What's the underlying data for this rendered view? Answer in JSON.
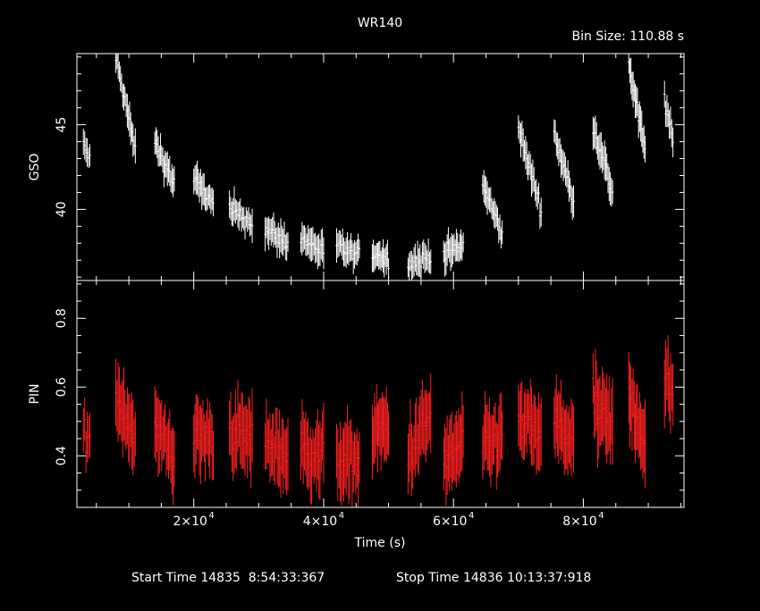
{
  "title": "WR140",
  "bin_label": "Bin Size:  110.88  s",
  "footer": {
    "start": "Start Time 14835  8:54:33:367",
    "stop": "Stop Time 14836 10:13:37:918"
  },
  "colors": {
    "background": "#000000",
    "axes": "#ffffff",
    "gso": "#ffffff",
    "pin": "#ff2020"
  },
  "chart_data": [
    {
      "type": "scatter",
      "ylabel": "GSO",
      "xlabel": "",
      "xlim": [
        2000,
        95500
      ],
      "ylim": [
        35.8,
        49.2
      ],
      "yticks": [
        {
          "v": 40,
          "label": "40"
        },
        {
          "v": 45,
          "label": "45"
        }
      ],
      "error_bars": true,
      "orbits": [
        {
          "x0": 3000,
          "x1": 4000,
          "y0": 43.8,
          "y1": 43.0,
          "err": 0.7,
          "n": 6
        },
        {
          "x0": 8000,
          "x1": 11000,
          "y0": 49.0,
          "y1": 43.5,
          "err": 0.8,
          "n": 18
        },
        {
          "x0": 14000,
          "x1": 17000,
          "y0": 44.0,
          "y1": 41.5,
          "err": 0.8,
          "n": 18
        },
        {
          "x0": 20000,
          "x1": 23000,
          "y0": 41.8,
          "y1": 40.3,
          "err": 0.8,
          "n": 18
        },
        {
          "x0": 25500,
          "x1": 29000,
          "y0": 40.0,
          "y1": 39.2,
          "err": 0.8,
          "n": 20
        },
        {
          "x0": 31000,
          "x1": 34500,
          "y0": 38.8,
          "y1": 38.0,
          "err": 0.8,
          "n": 20
        },
        {
          "x0": 36500,
          "x1": 40000,
          "y0": 38.3,
          "y1": 37.5,
          "err": 0.8,
          "n": 20
        },
        {
          "x0": 42000,
          "x1": 45500,
          "y0": 37.8,
          "y1": 37.2,
          "err": 0.8,
          "n": 20
        },
        {
          "x0": 47500,
          "x1": 50000,
          "y0": 37.5,
          "y1": 37.0,
          "err": 0.8,
          "n": 16
        },
        {
          "x0": 53000,
          "x1": 56500,
          "y0": 36.8,
          "y1": 37.2,
          "err": 0.8,
          "n": 20
        },
        {
          "x0": 58500,
          "x1": 61500,
          "y0": 37.4,
          "y1": 37.8,
          "err": 0.8,
          "n": 18
        },
        {
          "x0": 64500,
          "x1": 67500,
          "y0": 41.5,
          "y1": 38.5,
          "err": 0.8,
          "n": 18
        },
        {
          "x0": 70000,
          "x1": 73500,
          "y0": 44.8,
          "y1": 40.0,
          "err": 0.8,
          "n": 20
        },
        {
          "x0": 75500,
          "x1": 78500,
          "y0": 44.5,
          "y1": 40.5,
          "err": 0.8,
          "n": 18
        },
        {
          "x0": 81500,
          "x1": 84500,
          "y0": 45.0,
          "y1": 41.0,
          "err": 0.9,
          "n": 18
        },
        {
          "x0": 87000,
          "x1": 89500,
          "y0": 48.5,
          "y1": 43.5,
          "err": 0.9,
          "n": 16
        },
        {
          "x0": 92500,
          "x1": 93800,
          "y0": 46.5,
          "y1": 44.0,
          "err": 0.8,
          "n": 8
        }
      ]
    },
    {
      "type": "scatter",
      "ylabel": "PIN",
      "xlabel": "Time (s)",
      "xlim": [
        2000,
        95500
      ],
      "ylim": [
        0.25,
        0.91
      ],
      "yticks": [
        {
          "v": 0.4,
          "label": "0.4"
        },
        {
          "v": 0.6,
          "label": "0.6"
        },
        {
          "v": 0.8,
          "label": "0.8"
        }
      ],
      "xticks": [
        {
          "v": 20000,
          "label": "2×10",
          "exp": "4"
        },
        {
          "v": 40000,
          "label": "4×10",
          "exp": "4"
        },
        {
          "v": 60000,
          "label": "6×10",
          "exp": "4"
        },
        {
          "v": 80000,
          "label": "8×10",
          "exp": "4"
        }
      ],
      "error_bars": true,
      "orbits": [
        {
          "x0": 3000,
          "x1": 4000,
          "y0": 0.47,
          "y1": 0.45,
          "err": 0.07,
          "n": 6
        },
        {
          "x0": 8000,
          "x1": 11000,
          "y0": 0.58,
          "y1": 0.46,
          "err": 0.09,
          "n": 18
        },
        {
          "x0": 14000,
          "x1": 17000,
          "y0": 0.48,
          "y1": 0.4,
          "err": 0.09,
          "n": 18
        },
        {
          "x0": 20000,
          "x1": 23000,
          "y0": 0.46,
          "y1": 0.44,
          "err": 0.09,
          "n": 18
        },
        {
          "x0": 25500,
          "x1": 29000,
          "y0": 0.47,
          "y1": 0.45,
          "err": 0.09,
          "n": 20
        },
        {
          "x0": 31000,
          "x1": 34500,
          "y0": 0.44,
          "y1": 0.4,
          "err": 0.09,
          "n": 20
        },
        {
          "x0": 36500,
          "x1": 40000,
          "y0": 0.42,
          "y1": 0.4,
          "err": 0.09,
          "n": 20
        },
        {
          "x0": 42000,
          "x1": 45500,
          "y0": 0.4,
          "y1": 0.38,
          "err": 0.09,
          "n": 20
        },
        {
          "x0": 47500,
          "x1": 50000,
          "y0": 0.46,
          "y1": 0.48,
          "err": 0.09,
          "n": 16
        },
        {
          "x0": 53000,
          "x1": 56500,
          "y0": 0.4,
          "y1": 0.52,
          "err": 0.09,
          "n": 20
        },
        {
          "x0": 58500,
          "x1": 61500,
          "y0": 0.38,
          "y1": 0.44,
          "err": 0.09,
          "n": 18
        },
        {
          "x0": 64500,
          "x1": 67500,
          "y0": 0.42,
          "y1": 0.46,
          "err": 0.09,
          "n": 18
        },
        {
          "x0": 70000,
          "x1": 73500,
          "y0": 0.5,
          "y1": 0.46,
          "err": 0.09,
          "n": 20
        },
        {
          "x0": 75500,
          "x1": 78500,
          "y0": 0.5,
          "y1": 0.44,
          "err": 0.09,
          "n": 18
        },
        {
          "x0": 81500,
          "x1": 84500,
          "y0": 0.55,
          "y1": 0.47,
          "err": 0.1,
          "n": 18
        },
        {
          "x0": 87000,
          "x1": 89500,
          "y0": 0.58,
          "y1": 0.44,
          "err": 0.1,
          "n": 16
        },
        {
          "x0": 92500,
          "x1": 93800,
          "y0": 0.62,
          "y1": 0.57,
          "err": 0.09,
          "n": 8
        }
      ]
    }
  ]
}
